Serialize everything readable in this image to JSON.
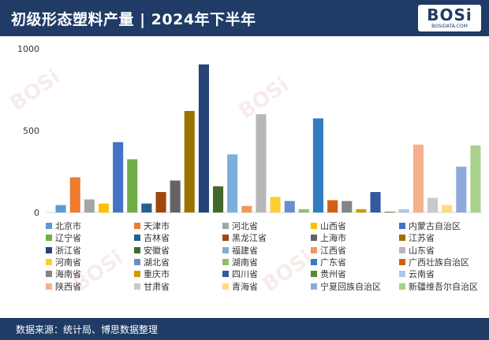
{
  "header": {
    "title": "初级形态塑料产量 | 2024年下半年"
  },
  "logo": {
    "text": "BOSi",
    "sub": "BOSIDATA.COM"
  },
  "footer": {
    "source": "数据来源：统计局、博思数据整理"
  },
  "watermarks": [
    "BOSi",
    "BOSi",
    "BOSi",
    "BOSi"
  ],
  "chart_data": {
    "type": "bar",
    "ylim": [
      0,
      1000
    ],
    "yticks": [
      0,
      500,
      1000
    ],
    "grid": false,
    "legend": "bottom",
    "series": [
      {
        "name": "北京市",
        "value": 45,
        "color": "#5b9bd5"
      },
      {
        "name": "天津市",
        "value": 215,
        "color": "#ed7d31"
      },
      {
        "name": "河北省",
        "value": 80,
        "color": "#a5a5a5"
      },
      {
        "name": "山西省",
        "value": 55,
        "color": "#ffc000"
      },
      {
        "name": "内蒙古自治区",
        "value": 430,
        "color": "#4472c4"
      },
      {
        "name": "辽宁省",
        "value": 325,
        "color": "#70ad47"
      },
      {
        "name": "吉林省",
        "value": 55,
        "color": "#255e91"
      },
      {
        "name": "黑龙江省",
        "value": 125,
        "color": "#9e480e"
      },
      {
        "name": "上海市",
        "value": 195,
        "color": "#636363"
      },
      {
        "name": "江苏省",
        "value": 620,
        "color": "#997300"
      },
      {
        "name": "浙江省",
        "value": 905,
        "color": "#264478"
      },
      {
        "name": "安徽省",
        "value": 160,
        "color": "#43682b"
      },
      {
        "name": "福建省",
        "value": 355,
        "color": "#7cafdd"
      },
      {
        "name": "江西省",
        "value": 40,
        "color": "#f1975a"
      },
      {
        "name": "山东省",
        "value": 600,
        "color": "#b7b7b7"
      },
      {
        "name": "河南省",
        "value": 95,
        "color": "#ffcd33"
      },
      {
        "name": "湖北省",
        "value": 70,
        "color": "#698ed0"
      },
      {
        "name": "湖南省",
        "value": 20,
        "color": "#8cc168"
      },
      {
        "name": "广东省",
        "value": 575,
        "color": "#327dc2"
      },
      {
        "name": "广西壮族自治区",
        "value": 75,
        "color": "#d26012"
      },
      {
        "name": "海南省",
        "value": 70,
        "color": "#848484"
      },
      {
        "name": "重庆市",
        "value": 20,
        "color": "#cc9a00"
      },
      {
        "name": "四川省",
        "value": 125,
        "color": "#335aa1"
      },
      {
        "name": "贵州省",
        "value": 5,
        "color": "#5a8a39"
      },
      {
        "name": "云南省",
        "value": 20,
        "color": "#a9c9e7"
      },
      {
        "name": "陕西省",
        "value": 415,
        "color": "#f5b08e"
      },
      {
        "name": "甘肃省",
        "value": 90,
        "color": "#c9c9c9"
      },
      {
        "name": "青海省",
        "value": 45,
        "color": "#ffdb80"
      },
      {
        "name": "宁夏回族自治区",
        "value": 280,
        "color": "#8eaadc"
      },
      {
        "name": "新疆维吾尔自治区",
        "value": 410,
        "color": "#a9d18e"
      }
    ]
  }
}
